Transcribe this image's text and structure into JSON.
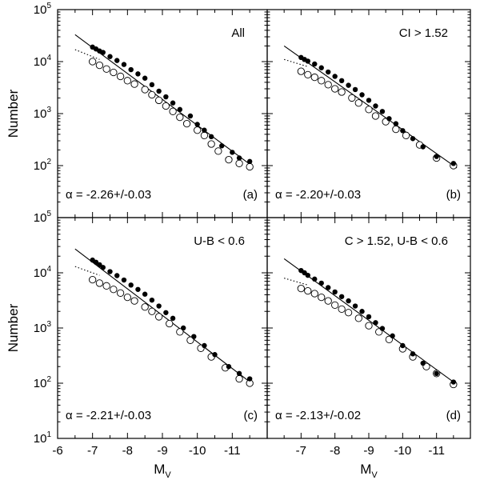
{
  "chart_data": [
    {
      "type": "scatter",
      "panel_label": "(a)",
      "subset": "All",
      "alpha_text": "α = -2.26+/-0.03",
      "xlabel": "",
      "ylabel": "Number",
      "xlim": [
        -6,
        -12
      ],
      "ylim": [
        10,
        100000
      ],
      "yscale": "log",
      "series": [
        {
          "marker": "filled-circle",
          "x": [
            -7.0,
            -7.1,
            -7.2,
            -7.3,
            -7.5,
            -7.7,
            -7.9,
            -8.1,
            -8.3,
            -8.5,
            -8.7,
            -8.9,
            -9.1,
            -9.3,
            -9.5,
            -9.8,
            -10.0,
            -10.2,
            -10.4,
            -10.7,
            -11.0,
            -11.2,
            -11.5
          ],
          "y": [
            19000,
            17500,
            16000,
            15000,
            12500,
            10500,
            8800,
            7000,
            5800,
            4800,
            3600,
            2700,
            2100,
            1600,
            1200,
            900,
            620,
            480,
            360,
            240,
            180,
            140,
            120
          ]
        },
        {
          "marker": "open-circle",
          "x": [
            -7.0,
            -7.2,
            -7.4,
            -7.6,
            -7.8,
            -8.0,
            -8.2,
            -8.5,
            -8.7,
            -8.9,
            -9.1,
            -9.3,
            -9.5,
            -9.7,
            -10.0,
            -10.2,
            -10.4,
            -10.6,
            -10.9,
            -11.2,
            -11.5
          ],
          "y": [
            10000,
            8500,
            7200,
            6200,
            5200,
            4300,
            3700,
            2900,
            2300,
            1800,
            1400,
            1100,
            850,
            640,
            480,
            380,
            260,
            190,
            130,
            110,
            95
          ]
        }
      ],
      "fit_lines": {
        "solid": {
          "x": [
            -6.5,
            -11.6
          ],
          "y": [
            33000,
            95
          ]
        },
        "dotted": {
          "x": [
            -6.5,
            -7.2
          ],
          "y": [
            17000,
            11000
          ]
        }
      }
    },
    {
      "type": "scatter",
      "panel_label": "(b)",
      "subset": "CI > 1.52",
      "alpha_text": "α = -2.20+/-0.03",
      "xlabel": "",
      "ylabel": "",
      "xlim": [
        -6,
        -12
      ],
      "ylim": [
        10,
        100000
      ],
      "yscale": "log",
      "series": [
        {
          "marker": "filled-circle",
          "x": [
            -7.0,
            -7.1,
            -7.2,
            -7.4,
            -7.6,
            -7.8,
            -8.0,
            -8.2,
            -8.4,
            -8.6,
            -8.8,
            -9.0,
            -9.2,
            -9.4,
            -9.6,
            -9.8,
            -10.0,
            -10.3,
            -10.6,
            -11.0,
            -11.5
          ],
          "y": [
            12000,
            11000,
            10200,
            9000,
            7600,
            6300,
            5200,
            4300,
            3500,
            2900,
            2300,
            1800,
            1400,
            1100,
            800,
            640,
            470,
            330,
            230,
            150,
            110
          ]
        },
        {
          "marker": "open-circle",
          "x": [
            -7.0,
            -7.2,
            -7.4,
            -7.6,
            -7.8,
            -8.0,
            -8.2,
            -8.5,
            -8.7,
            -9.0,
            -9.2,
            -9.5,
            -9.8,
            -10.1,
            -10.5,
            -11.0,
            -11.5
          ],
          "y": [
            6500,
            5600,
            5000,
            4300,
            3600,
            3000,
            2600,
            2000,
            1600,
            1200,
            900,
            700,
            500,
            380,
            250,
            140,
            100
          ]
        }
      ],
      "fit_lines": {
        "solid": {
          "x": [
            -6.5,
            -11.6
          ],
          "y": [
            20000,
            90
          ]
        },
        "dotted": {
          "x": [
            -6.5,
            -7.2
          ],
          "y": [
            11000,
            8000
          ]
        }
      }
    },
    {
      "type": "scatter",
      "panel_label": "(c)",
      "subset": "U-B < 0.6",
      "alpha_text": "α = -2.21+/-0.03",
      "xlabel": "M",
      "xlabel_sub": "V",
      "ylabel": "Number",
      "xlim": [
        -6,
        -12
      ],
      "ylim": [
        10,
        100000
      ],
      "yscale": "log",
      "series": [
        {
          "marker": "filled-circle",
          "x": [
            -7.0,
            -7.1,
            -7.2,
            -7.3,
            -7.5,
            -7.7,
            -7.9,
            -8.1,
            -8.3,
            -8.5,
            -8.7,
            -8.9,
            -9.1,
            -9.3,
            -9.6,
            -9.9,
            -10.2,
            -10.5,
            -10.9,
            -11.2,
            -11.5
          ],
          "y": [
            17000,
            15500,
            14000,
            12500,
            10500,
            8900,
            7400,
            6000,
            5000,
            4100,
            3200,
            2500,
            1900,
            1500,
            1000,
            700,
            480,
            330,
            200,
            150,
            120
          ]
        },
        {
          "marker": "open-circle",
          "x": [
            -7.0,
            -7.2,
            -7.4,
            -7.6,
            -7.8,
            -8.0,
            -8.2,
            -8.5,
            -8.7,
            -8.9,
            -9.2,
            -9.5,
            -9.8,
            -10.1,
            -10.4,
            -10.8,
            -11.2,
            -11.5
          ],
          "y": [
            7500,
            6500,
            5800,
            5000,
            4300,
            3600,
            3100,
            2400,
            2000,
            1600,
            1200,
            850,
            600,
            430,
            300,
            190,
            120,
            100
          ]
        }
      ],
      "fit_lines": {
        "solid": {
          "x": [
            -6.5,
            -11.6
          ],
          "y": [
            27000,
            95
          ]
        },
        "dotted": {
          "x": [
            -6.5,
            -7.2
          ],
          "y": [
            13000,
            9000
          ]
        }
      }
    },
    {
      "type": "scatter",
      "panel_label": "(d)",
      "subset": "C > 1.52, U-B < 0.6",
      "alpha_text": "α = -2.13+/-0.02",
      "xlabel": "M",
      "xlabel_sub": "V",
      "ylabel": "",
      "xlim": [
        -6,
        -12
      ],
      "ylim": [
        10,
        100000
      ],
      "yscale": "log",
      "series": [
        {
          "marker": "filled-circle",
          "x": [
            -7.0,
            -7.1,
            -7.2,
            -7.4,
            -7.6,
            -7.8,
            -8.0,
            -8.2,
            -8.4,
            -8.6,
            -8.8,
            -9.0,
            -9.2,
            -9.4,
            -9.7,
            -10.0,
            -10.3,
            -10.6,
            -11.0,
            -11.5
          ],
          "y": [
            11000,
            10000,
            9000,
            7700,
            6500,
            5400,
            4500,
            3700,
            3100,
            2500,
            2000,
            1600,
            1250,
            980,
            720,
            480,
            340,
            230,
            150,
            105
          ]
        },
        {
          "marker": "open-circle",
          "x": [
            -7.0,
            -7.2,
            -7.4,
            -7.6,
            -7.8,
            -8.0,
            -8.2,
            -8.4,
            -8.7,
            -9.0,
            -9.3,
            -9.6,
            -10.0,
            -10.3,
            -10.7,
            -11.0,
            -11.5
          ],
          "y": [
            5200,
            4700,
            4200,
            3600,
            3100,
            2600,
            2200,
            1900,
            1500,
            1100,
            850,
            620,
            420,
            300,
            200,
            150,
            95
          ]
        }
      ],
      "fit_lines": {
        "solid": {
          "x": [
            -6.5,
            -11.6
          ],
          "y": [
            18000,
            95
          ]
        },
        "dotted": {
          "x": [
            -6.5,
            -7.2
          ],
          "y": [
            8000,
            6000
          ]
        }
      }
    }
  ],
  "axes": {
    "x_ticks": [
      -6,
      -7,
      -8,
      -9,
      -10,
      -11
    ],
    "x_tick_labels": [
      "-6",
      "-7",
      "-8",
      "-9",
      "-10",
      "-11"
    ],
    "y_tick_labels": [
      {
        "base": "10",
        "exp": "1",
        "value": 10
      },
      {
        "base": "10",
        "exp": "2",
        "value": 100
      },
      {
        "base": "10",
        "exp": "3",
        "value": 1000
      },
      {
        "base": "10",
        "exp": "4",
        "value": 10000
      },
      {
        "base": "10",
        "exp": "5",
        "value": 100000
      }
    ]
  }
}
